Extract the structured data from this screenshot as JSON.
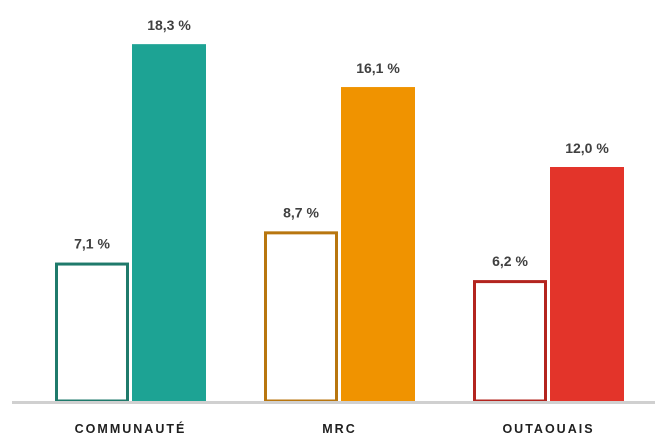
{
  "chart_data": {
    "type": "bar",
    "categories": [
      "COMMUNAUTÉ",
      "MRC",
      "OUTAOUAIS"
    ],
    "series": [
      {
        "values": [
          7.1,
          8.7,
          6.2
        ],
        "labels": [
          "7,1 %",
          "8,7 %",
          "6,2 %"
        ],
        "style": "outline"
      },
      {
        "values": [
          18.3,
          16.1,
          12.0
        ],
        "labels": [
          "18,3 %",
          "16,1 %",
          "12,0 %"
        ],
        "style": "filled"
      }
    ],
    "colors": [
      "#1f7a6b",
      "#b8760f",
      "#b3241f"
    ],
    "fill_colors": [
      "#1da394",
      "#f09300",
      "#e3342a"
    ],
    "axis_color": "#d0d0d0",
    "ylim": [
      0,
      20
    ],
    "grid": false,
    "legend": "none"
  }
}
